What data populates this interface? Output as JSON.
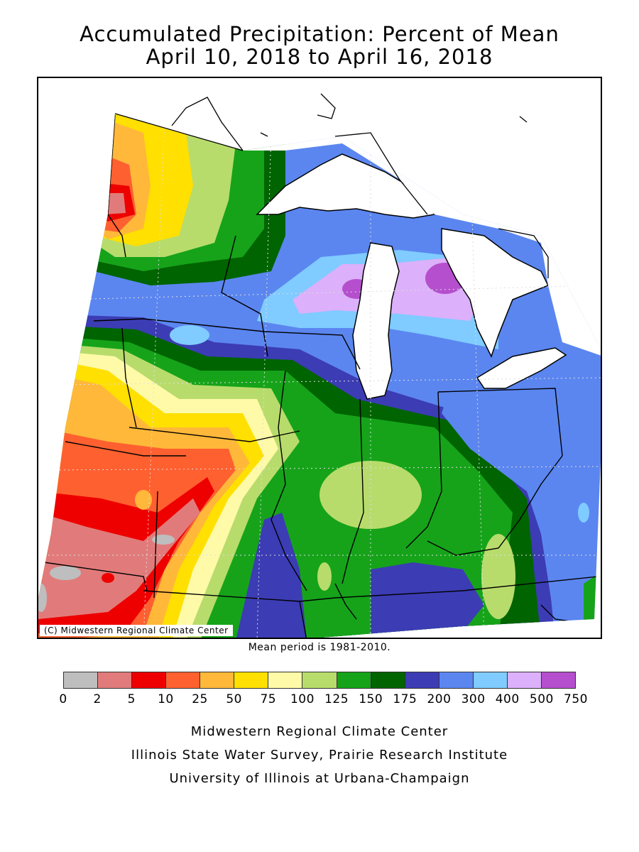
{
  "header": {
    "title_line1": "Accumulated Precipitation: Percent of Mean",
    "title_line2": "April 10, 2018 to April 16, 2018"
  },
  "map": {
    "copyright": "(C) Midwestern Regional Climate Center",
    "mean_period": "Mean period is 1981-2010."
  },
  "legend": {
    "colors": [
      "#bebebe",
      "#e17b7b",
      "#ee0000",
      "#ff6030",
      "#ffb83a",
      "#ffe000",
      "#fffaa8",
      "#b8dc6c",
      "#16a31a",
      "#006400",
      "#3c3cb4",
      "#5b86f0",
      "#80cbff",
      "#dcb0fa",
      "#b54fcd"
    ],
    "labels": [
      "0",
      "2",
      "5",
      "10",
      "25",
      "50",
      "75",
      "100",
      "125",
      "150",
      "175",
      "200",
      "300",
      "400",
      "500",
      "750"
    ]
  },
  "credits": {
    "line1": "Midwestern Regional Climate Center",
    "line2": "Illinois State Water Survey, Prairie Research Institute",
    "line3": "University of Illinois at Urbana-Champaign"
  }
}
